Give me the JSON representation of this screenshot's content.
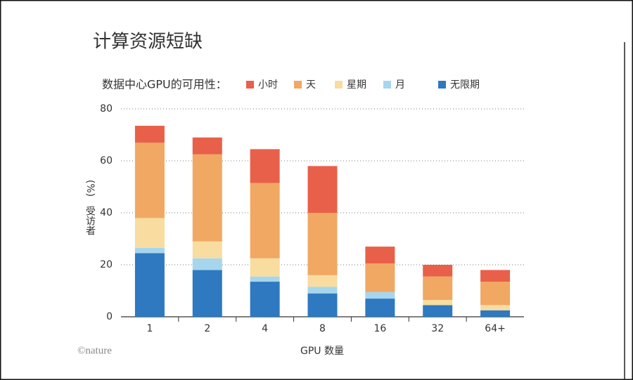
{
  "chart_data": {
    "type": "stacked_bar",
    "title": "计算资源短缺",
    "legend_title": "数据中心GPU的可用性：",
    "y_label": "受访者",
    "y_unit": "(%)",
    "x_label": "GPU 数量",
    "source": "©nature",
    "categories": [
      "1",
      "2",
      "4",
      "8",
      "16",
      "32",
      "64+"
    ],
    "series": [
      {
        "name": "小时",
        "color": "#e8604a",
        "values": [
          6.5,
          6.5,
          13,
          18,
          6.5,
          4.5,
          4.5
        ]
      },
      {
        "name": "天",
        "color": "#f0a862",
        "values": [
          29,
          33.5,
          29,
          24,
          11,
          9,
          9
        ]
      },
      {
        "name": "星期",
        "color": "#f8dca0",
        "values": [
          11.5,
          6.5,
          7,
          4.5,
          0,
          2,
          2
        ]
      },
      {
        "name": "月",
        "color": "#a6d6ee",
        "values": [
          2,
          4.5,
          2,
          2.5,
          2.5,
          0,
          0
        ]
      },
      {
        "name": "无限期",
        "color": "#2e79c0",
        "values": [
          24.5,
          18,
          13.5,
          9,
          7,
          4.5,
          2.5
        ]
      }
    ],
    "ylim": [
      0,
      80
    ],
    "yticks": [
      0,
      20,
      40,
      60,
      80
    ],
    "grid": true
  }
}
